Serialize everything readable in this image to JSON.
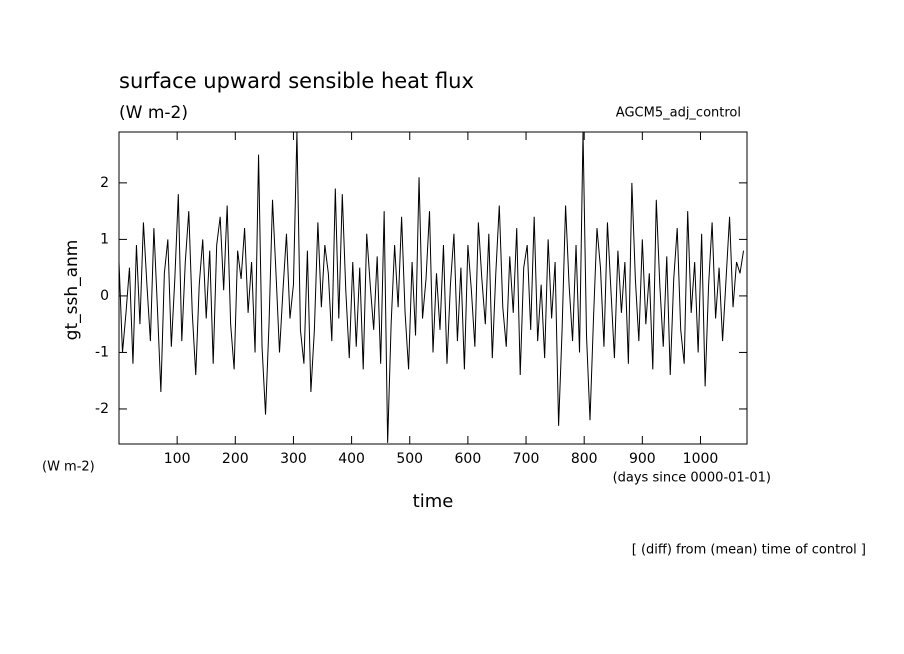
{
  "chart_data": {
    "type": "line",
    "title": "surface upward sensible heat flux",
    "units_top": "(W m-2)",
    "run_label": "AGCM5_adj_control",
    "ylabel": "gt_ssh_anm",
    "units_bottom": "(W m-2)",
    "xunits": "(days since 0000-01-01)",
    "xlabel": "time",
    "note": "[ (diff) from (mean) time of control ]",
    "color": "#000000",
    "xlim": [
      0,
      1080
    ],
    "ylim": [
      -2.62,
      2.9
    ],
    "xticks": [
      100,
      200,
      300,
      400,
      500,
      600,
      700,
      800,
      900,
      1000
    ],
    "yticks": [
      -2,
      -1,
      0,
      1,
      2
    ],
    "x": [
      0,
      6,
      12,
      18,
      24,
      30,
      36,
      42,
      48,
      54,
      60,
      66,
      72,
      78,
      84,
      90,
      96,
      102,
      108,
      114,
      120,
      126,
      132,
      138,
      144,
      150,
      156,
      162,
      168,
      174,
      180,
      186,
      192,
      198,
      204,
      210,
      216,
      222,
      228,
      234,
      240,
      246,
      252,
      258,
      264,
      270,
      276,
      282,
      288,
      294,
      300,
      306,
      312,
      318,
      324,
      330,
      336,
      342,
      348,
      354,
      360,
      366,
      372,
      378,
      384,
      390,
      396,
      402,
      408,
      414,
      420,
      426,
      432,
      438,
      444,
      450,
      456,
      462,
      468,
      474,
      480,
      486,
      492,
      498,
      504,
      510,
      516,
      522,
      528,
      534,
      540,
      546,
      552,
      558,
      564,
      570,
      576,
      582,
      588,
      594,
      600,
      606,
      612,
      618,
      624,
      630,
      636,
      642,
      648,
      654,
      660,
      666,
      672,
      678,
      684,
      690,
      696,
      702,
      708,
      714,
      720,
      726,
      732,
      738,
      744,
      750,
      756,
      762,
      768,
      774,
      780,
      786,
      792,
      798,
      804,
      810,
      816,
      822,
      828,
      834,
      840,
      846,
      852,
      858,
      864,
      870,
      876,
      882,
      888,
      894,
      900,
      906,
      912,
      918,
      924,
      930,
      936,
      942,
      948,
      954,
      960,
      966,
      972,
      978,
      984,
      990,
      996,
      1002,
      1008,
      1014,
      1020,
      1026,
      1032,
      1038,
      1044,
      1050,
      1056,
      1062,
      1068,
      1074
    ],
    "values": [
      0.6,
      -1.0,
      -0.3,
      0.5,
      -1.2,
      0.9,
      -0.5,
      1.3,
      0.2,
      -0.8,
      1.2,
      -0.2,
      -1.7,
      0.4,
      1.0,
      -0.9,
      0.3,
      1.8,
      -0.8,
      0.6,
      1.5,
      -0.3,
      -1.4,
      0.2,
      1.0,
      -0.4,
      0.8,
      -1.2,
      0.9,
      1.4,
      0.1,
      1.6,
      -0.5,
      -1.3,
      0.8,
      0.3,
      1.2,
      -0.3,
      0.6,
      -1.0,
      2.5,
      -0.9,
      -2.1,
      -0.5,
      1.7,
      0.4,
      -1.0,
      0.1,
      1.1,
      -0.4,
      0.2,
      2.9,
      -0.6,
      -1.2,
      0.8,
      -1.7,
      -0.6,
      1.3,
      -0.2,
      0.9,
      0.4,
      -0.8,
      1.9,
      -0.4,
      1.8,
      0.1,
      -1.1,
      0.6,
      -0.9,
      0.5,
      -1.3,
      1.1,
      0.2,
      -0.6,
      0.7,
      -1.2,
      1.5,
      -2.6,
      -0.5,
      0.9,
      -0.2,
      1.4,
      -0.3,
      -1.3,
      0.6,
      -0.7,
      2.1,
      -0.4,
      0.3,
      1.5,
      -1.0,
      0.4,
      -0.6,
      0.9,
      -1.2,
      0.2,
      1.1,
      -0.8,
      0.5,
      -1.3,
      0.9,
      0.1,
      -0.9,
      1.3,
      0.3,
      -0.5,
      1.1,
      -1.1,
      0.4,
      1.6,
      -0.2,
      -0.9,
      0.7,
      -0.3,
      1.2,
      -1.4,
      0.5,
      0.9,
      -0.6,
      1.4,
      -0.8,
      0.2,
      -1.1,
      1.0,
      -0.4,
      0.6,
      -2.3,
      -0.6,
      1.6,
      0.2,
      -0.8,
      0.9,
      -1.0,
      2.9,
      -0.7,
      -2.2,
      -0.4,
      1.2,
      0.5,
      -0.9,
      1.3,
      0.1,
      -1.1,
      0.8,
      -0.3,
      0.6,
      -1.2,
      2.0,
      0.3,
      -0.8,
      1.0,
      -0.5,
      0.4,
      -1.3,
      1.7,
      0.2,
      -0.9,
      0.7,
      -1.4,
      0.3,
      1.2,
      -0.6,
      -1.2,
      1.5,
      -0.3,
      0.6,
      -1.0,
      1.1,
      -1.6,
      0.2,
      1.3,
      -0.4,
      0.5,
      -0.8,
      0.3,
      1.4,
      -0.2,
      0.6,
      0.4,
      0.8
    ]
  }
}
